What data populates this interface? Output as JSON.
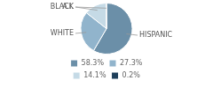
{
  "chart_data": {
    "type": "pie",
    "categories": [
      "HISPANIC",
      "WHITE",
      "A.I.",
      "BLACK"
    ],
    "values": [
      58.3,
      27.3,
      14.1,
      0.2
    ],
    "value_labels": [
      "58.3%",
      "27.3%",
      "14.1%",
      "0.2%"
    ],
    "colors": [
      "#6b8fa8",
      "#91b4cc",
      "#c5dae6",
      "#1e3f5a"
    ],
    "legend": "bottom"
  }
}
